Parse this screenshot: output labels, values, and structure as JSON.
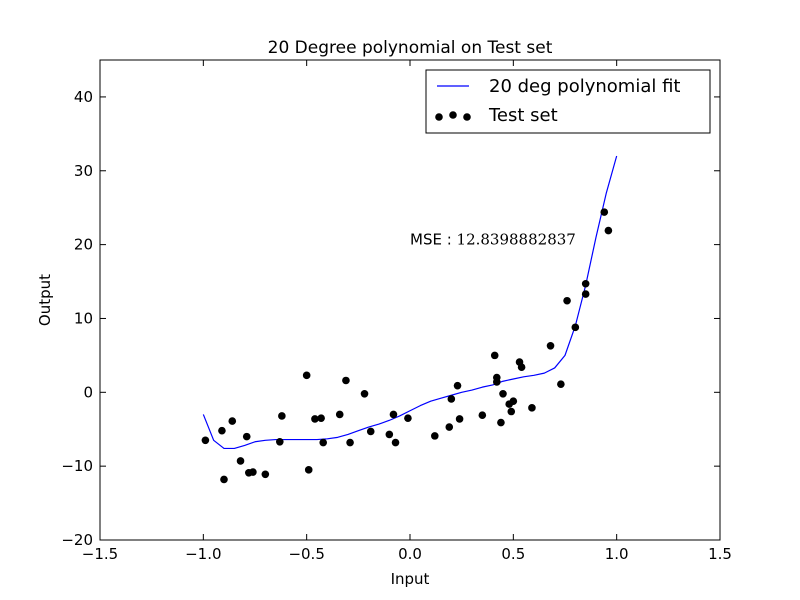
{
  "chart_data": {
    "type": "scatter",
    "title": "20 Degree polynomial on Test set",
    "xlabel": "Input",
    "ylabel": "Output",
    "xlim": [
      -1.5,
      1.5
    ],
    "ylim": [
      -20,
      45
    ],
    "xticks": [
      -1.5,
      -1.0,
      -0.5,
      0.0,
      0.5,
      1.0,
      1.5
    ],
    "xtick_labels": [
      "−1.5",
      "−1.0",
      "−0.5",
      "0.0",
      "0.5",
      "1.0",
      "1.5"
    ],
    "yticks": [
      -20,
      -10,
      0,
      10,
      20,
      30,
      40
    ],
    "ytick_labels": [
      "−20",
      "−10",
      "0",
      "10",
      "20",
      "30",
      "40"
    ],
    "grid": false,
    "legend_position": "top-right",
    "annotation": {
      "label": "MSE : ",
      "value": "12.8398882837",
      "x": 0.0,
      "y": 20.0
    },
    "series": [
      {
        "name": "20 deg polynomial fit",
        "kind": "line",
        "color": "#0000ff",
        "x": [
          -1.0,
          -0.95,
          -0.9,
          -0.85,
          -0.8,
          -0.75,
          -0.7,
          -0.65,
          -0.6,
          -0.55,
          -0.5,
          -0.45,
          -0.4,
          -0.35,
          -0.3,
          -0.25,
          -0.2,
          -0.15,
          -0.1,
          -0.05,
          0.0,
          0.05,
          0.1,
          0.15,
          0.2,
          0.25,
          0.3,
          0.35,
          0.4,
          0.45,
          0.5,
          0.55,
          0.6,
          0.65,
          0.7,
          0.75,
          0.8,
          0.85,
          0.9,
          0.95,
          1.0
        ],
        "y": [
          -3.0,
          -6.5,
          -7.6,
          -7.6,
          -7.2,
          -6.7,
          -6.5,
          -6.4,
          -6.4,
          -6.4,
          -6.4,
          -6.4,
          -6.3,
          -6.1,
          -5.7,
          -5.2,
          -4.7,
          -4.3,
          -3.8,
          -3.2,
          -2.5,
          -1.8,
          -1.2,
          -0.8,
          -0.4,
          0.0,
          0.3,
          0.7,
          1.0,
          1.5,
          1.8,
          2.1,
          2.3,
          2.6,
          3.3,
          5.0,
          9.0,
          14.5,
          21.0,
          27.0,
          32.0
        ]
      },
      {
        "name": "Test set",
        "kind": "scatter",
        "color": "#000000",
        "x": [
          -0.99,
          -0.91,
          -0.9,
          -0.86,
          -0.82,
          -0.79,
          -0.78,
          -0.76,
          -0.7,
          -0.63,
          -0.62,
          -0.5,
          -0.49,
          -0.46,
          -0.43,
          -0.42,
          -0.34,
          -0.31,
          -0.29,
          -0.22,
          -0.19,
          -0.1,
          -0.08,
          -0.07,
          -0.01,
          0.12,
          0.19,
          0.2,
          0.23,
          0.24,
          0.35,
          0.41,
          0.42,
          0.42,
          0.44,
          0.45,
          0.48,
          0.49,
          0.5,
          0.53,
          0.54,
          0.59,
          0.68,
          0.73,
          0.76,
          0.8,
          0.85,
          0.85,
          0.94,
          0.96
        ],
        "y": [
          -6.5,
          -5.2,
          -11.8,
          -3.9,
          -9.3,
          -6.0,
          -10.9,
          -10.8,
          -11.1,
          -6.7,
          -3.2,
          2.3,
          -10.5,
          -3.6,
          -3.5,
          -6.8,
          -3.0,
          1.6,
          -6.8,
          -0.2,
          -5.3,
          -5.7,
          -3.0,
          -6.8,
          -3.5,
          -5.9,
          -4.7,
          -0.9,
          0.9,
          -3.6,
          -3.1,
          5.0,
          2.0,
          1.4,
          -4.1,
          -0.2,
          -1.6,
          -2.6,
          -1.2,
          4.1,
          3.4,
          -2.1,
          6.3,
          1.1,
          12.4,
          8.8,
          13.3,
          14.7,
          24.4,
          21.9
        ]
      }
    ]
  }
}
